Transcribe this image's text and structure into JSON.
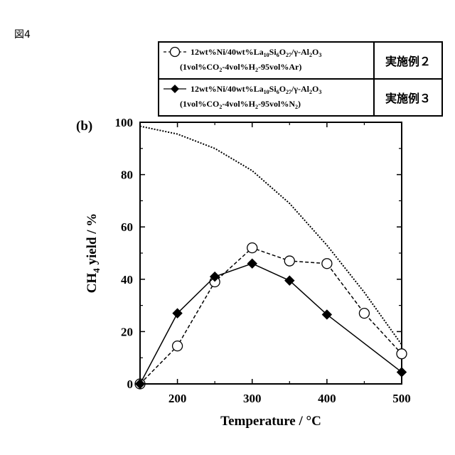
{
  "figure_label": "図4",
  "chart_data": {
    "type": "line",
    "panel_label": "(b)",
    "xlabel": "Temperature / °C",
    "ylabel": {
      "main": "CH",
      "sub": "4",
      "rest": " yield / %"
    },
    "xlim": [
      150,
      500
    ],
    "ylim": [
      0,
      100
    ],
    "x_ticks": [
      200,
      300,
      400,
      500
    ],
    "x_minor_ticks": [
      250,
      350,
      450
    ],
    "y_ticks": [
      0,
      20,
      40,
      60,
      80,
      100
    ],
    "y_minor_ticks": [
      10,
      30,
      50,
      70,
      90
    ],
    "grid": false,
    "legend_position": "top",
    "equilibrium_curve": {
      "style": "dotted",
      "x": [
        150,
        200,
        250,
        300,
        350,
        400,
        450,
        500
      ],
      "y": [
        98.5,
        95.5,
        90,
        81.5,
        69,
        53,
        35,
        15
      ]
    },
    "series": [
      {
        "marker": "open-circle",
        "line": "dashed",
        "color": "#000000",
        "x": [
          150,
          200,
          250,
          300,
          350,
          400,
          450,
          500
        ],
        "y": [
          0,
          14.5,
          39,
          52,
          47,
          46,
          27,
          11.5
        ],
        "legend_lines": [
          [
            "12wt%Ni/40wt%La",
            "10",
            "Si",
            "6",
            "O",
            "27",
            "/γ-Al",
            "2",
            "O",
            "3",
            ""
          ],
          [
            "(1vol%CO",
            "2",
            "-4vol%H",
            "2",
            "-95vol%Ar)"
          ]
        ],
        "label_jp": "実施例２"
      },
      {
        "marker": "filled-diamond",
        "line": "solid",
        "color": "#000000",
        "x": [
          150,
          200,
          250,
          300,
          350,
          400,
          500
        ],
        "y": [
          0,
          27,
          41,
          46,
          39.5,
          26.5,
          4.5
        ],
        "legend_lines": [
          [
            "12wt%Ni/40wt%La",
            "10",
            "Si",
            "6",
            "O",
            "27",
            "/γ-Al",
            "2",
            "O",
            "3",
            ""
          ],
          [
            "(1vol%CO",
            "2",
            "-4vol%H",
            "2",
            "-95vol%N",
            "2",
            ")"
          ]
        ],
        "label_jp": "実施例３"
      }
    ]
  }
}
